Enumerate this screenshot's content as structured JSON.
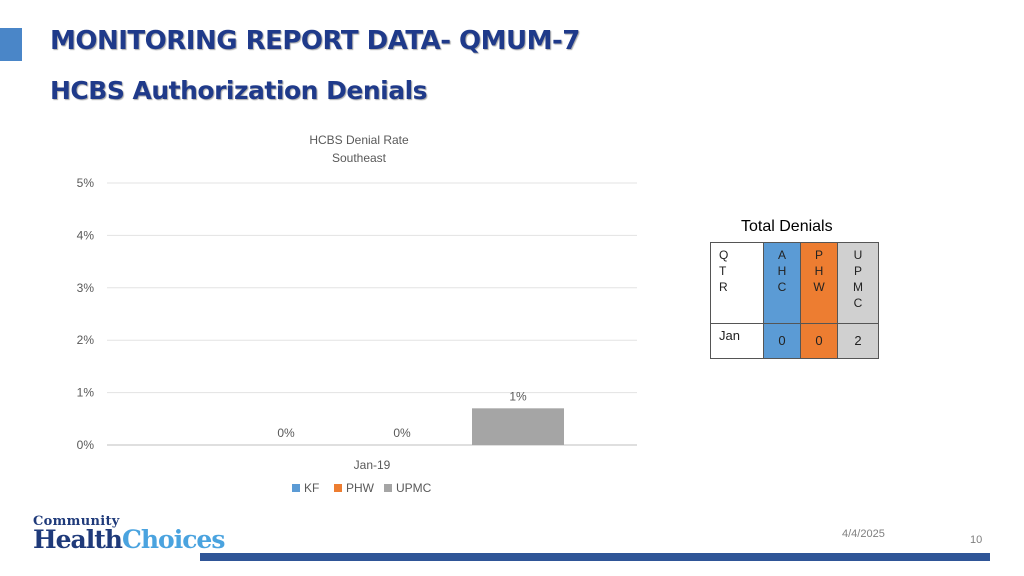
{
  "header": {
    "title_line1": "MONITORING REPORT DATA- QMUM-7",
    "title_line2": "HCBS Authorization Denials"
  },
  "colors": {
    "accent": "#4a86c8",
    "title": "#1f3a8a",
    "kf": "#5b9bd5",
    "phw": "#ed7d31",
    "upmc": "#a5a5a5",
    "footer_bar": "#2f5597"
  },
  "chart_data": {
    "type": "bar",
    "title": "HCBS Denial Rate",
    "subtitle": "Southeast",
    "categories": [
      "Jan-19"
    ],
    "series": [
      {
        "name": "KF",
        "values": [
          0.0
        ],
        "label": "0%",
        "color": "#5b9bd5"
      },
      {
        "name": "PHW",
        "values": [
          0.0
        ],
        "label": "0%",
        "color": "#ed7d31"
      },
      {
        "name": "UPMC",
        "values": [
          0.7
        ],
        "label": "1%",
        "color": "#a5a5a5"
      }
    ],
    "yticks": [
      "0%",
      "1%",
      "2%",
      "3%",
      "4%",
      "5%"
    ],
    "ylim": [
      0,
      5
    ],
    "xlabel": "",
    "ylabel": "",
    "grid": true,
    "legend": "bottom"
  },
  "table": {
    "title": "Total Denials",
    "headers": [
      "Q\nT\nR",
      "A\nH\nC",
      "P\nH\nW",
      "U\nP\nM\nC"
    ],
    "rows": [
      {
        "qtr": "Jan",
        "ahc": "0",
        "phw": "0",
        "upmc": "2"
      }
    ]
  },
  "logo": {
    "line1": "Community",
    "line2a": "Health",
    "line2b": "Choices"
  },
  "footer": {
    "date": "4/4/2025",
    "page": "10"
  }
}
